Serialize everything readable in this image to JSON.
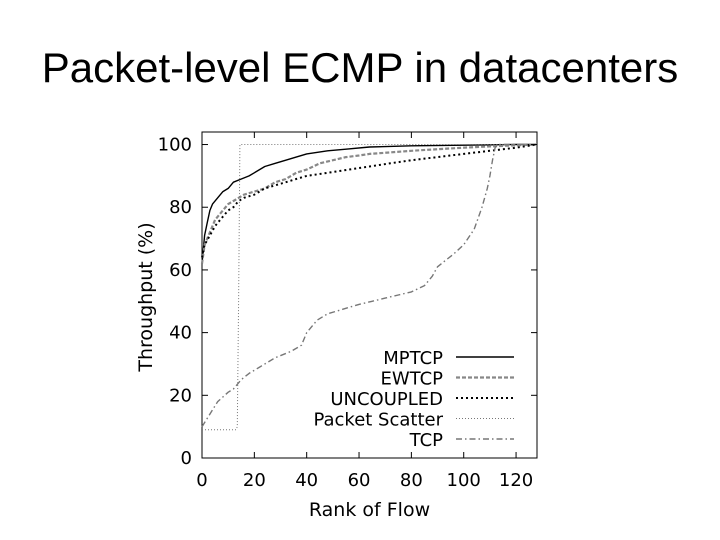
{
  "slide": {
    "title": "Packet-level ECMP in datacenters"
  },
  "chart_data": {
    "type": "line",
    "title": "",
    "xlabel": "Rank of Flow",
    "ylabel": "Throughput (%)",
    "xlim": [
      0,
      128
    ],
    "ylim": [
      0,
      104
    ],
    "x_ticks": [
      0,
      20,
      40,
      60,
      80,
      100,
      120
    ],
    "y_ticks": [
      0,
      20,
      40,
      60,
      80,
      100
    ],
    "grid": false,
    "legend_position": "bottom-right",
    "series": [
      {
        "name": "MPTCP",
        "style": "solid",
        "color": "#000000",
        "points": [
          [
            0,
            62
          ],
          [
            1,
            71
          ],
          [
            2,
            75
          ],
          [
            3,
            79
          ],
          [
            4,
            81
          ],
          [
            6,
            83
          ],
          [
            8,
            85
          ],
          [
            10,
            86
          ],
          [
            12,
            88
          ],
          [
            15,
            89
          ],
          [
            18,
            90
          ],
          [
            20,
            91
          ],
          [
            24,
            93
          ],
          [
            28,
            94
          ],
          [
            32,
            95
          ],
          [
            36,
            96
          ],
          [
            40,
            97
          ],
          [
            48,
            98
          ],
          [
            56,
            98.6
          ],
          [
            64,
            99.2
          ],
          [
            80,
            99.6
          ],
          [
            100,
            99.8
          ],
          [
            120,
            100
          ],
          [
            128,
            100
          ]
        ]
      },
      {
        "name": "EWTCP",
        "style": "dashed",
        "color": "#888888",
        "points": [
          [
            0,
            62
          ],
          [
            1,
            68
          ],
          [
            3,
            72
          ],
          [
            5,
            76
          ],
          [
            8,
            79
          ],
          [
            10,
            81
          ],
          [
            12,
            82
          ],
          [
            16,
            84
          ],
          [
            20,
            85
          ],
          [
            24,
            86
          ],
          [
            28,
            88
          ],
          [
            32,
            89
          ],
          [
            36,
            91
          ],
          [
            40,
            92
          ],
          [
            45,
            94
          ],
          [
            50,
            95
          ],
          [
            55,
            96
          ],
          [
            60,
            96.5
          ],
          [
            64,
            97
          ],
          [
            72,
            97.5
          ],
          [
            80,
            98
          ],
          [
            90,
            98.5
          ],
          [
            100,
            99
          ],
          [
            110,
            99.4
          ],
          [
            128,
            100
          ]
        ]
      },
      {
        "name": "UNCOUPLED",
        "style": "dotted",
        "color": "#000000",
        "points": [
          [
            0,
            64
          ],
          [
            1,
            68
          ],
          [
            3,
            71
          ],
          [
            5,
            74
          ],
          [
            8,
            77
          ],
          [
            10,
            79
          ],
          [
            12,
            80
          ],
          [
            14,
            82
          ],
          [
            16,
            83
          ],
          [
            20,
            84
          ],
          [
            24,
            86
          ],
          [
            28,
            87
          ],
          [
            32,
            88
          ],
          [
            36,
            89
          ],
          [
            40,
            90
          ],
          [
            48,
            91
          ],
          [
            56,
            92
          ],
          [
            64,
            93
          ],
          [
            72,
            94
          ],
          [
            80,
            95
          ],
          [
            90,
            96
          ],
          [
            100,
            97
          ],
          [
            110,
            98
          ],
          [
            120,
            99
          ],
          [
            128,
            100
          ]
        ]
      },
      {
        "name": "Packet Scatter",
        "style": "fine-dotted",
        "color": "#777777",
        "points": [
          [
            0,
            9
          ],
          [
            13,
            9
          ],
          [
            13.5,
            10
          ],
          [
            14,
            50
          ],
          [
            14.5,
            100
          ],
          [
            15,
            100
          ],
          [
            128,
            100
          ]
        ]
      },
      {
        "name": "TCP",
        "style": "dashdot",
        "color": "#777777",
        "points": [
          [
            0,
            10
          ],
          [
            3,
            14
          ],
          [
            6,
            18
          ],
          [
            10,
            21
          ],
          [
            12,
            22
          ],
          [
            15,
            25
          ],
          [
            18,
            27
          ],
          [
            22,
            29
          ],
          [
            28,
            32
          ],
          [
            34,
            34
          ],
          [
            38,
            36
          ],
          [
            40,
            40
          ],
          [
            44,
            44
          ],
          [
            48,
            46
          ],
          [
            52,
            47
          ],
          [
            56,
            48
          ],
          [
            60,
            49
          ],
          [
            65,
            50
          ],
          [
            70,
            51
          ],
          [
            75,
            52
          ],
          [
            80,
            53
          ],
          [
            85,
            55
          ],
          [
            88,
            58
          ],
          [
            90,
            61
          ],
          [
            93,
            63
          ],
          [
            96,
            65
          ],
          [
            100,
            68
          ],
          [
            104,
            73
          ],
          [
            107,
            80
          ],
          [
            109,
            86
          ],
          [
            110,
            90
          ],
          [
            111,
            95
          ],
          [
            112,
            99
          ],
          [
            113,
            100
          ],
          [
            128,
            100
          ]
        ]
      }
    ]
  }
}
